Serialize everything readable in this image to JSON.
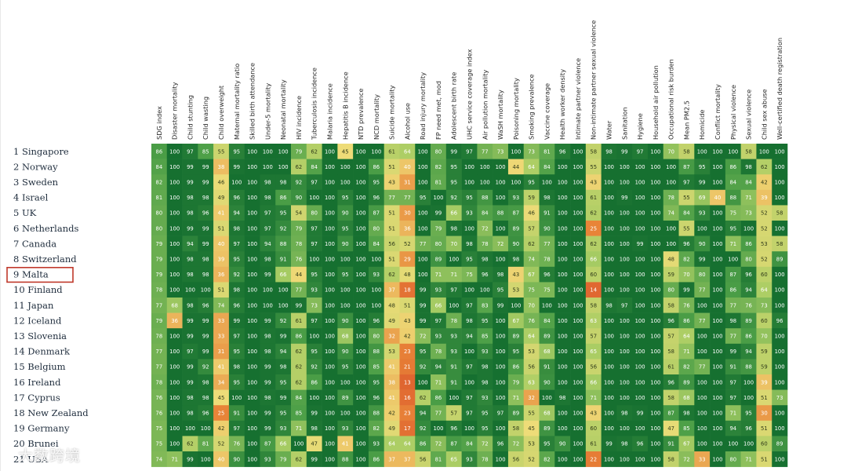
{
  "chart_data": {
    "type": "heatmap",
    "title": "",
    "xlabel": "",
    "ylabel": "",
    "highlighted_row": "9 Malta",
    "row_labels": [
      "1 Singapore",
      "2 Norway",
      "3 Sweden",
      "4 Israel",
      "5 UK",
      "6 Netherlands",
      "7 Canada",
      "8 Switzerland",
      "9 Malta",
      "10 Finland",
      "11 Japan",
      "12 Iceland",
      "13 Slovenia",
      "14 Denmark",
      "15 Belgium",
      "16 Ireland",
      "17 Cyprus",
      "18 New Zealand",
      "19 Germany",
      "20 Brunei",
      "21 USA"
    ],
    "column_labels": [
      "SDG index",
      "Disaster mortality",
      "Child stunting",
      "Child wasting",
      "Child overweight",
      "Maternal mortality ratio",
      "Skilled birth attendance",
      "Under-5 mortality",
      "Neonatal mortality",
      "HIV incidence",
      "Tuberculosis incidence",
      "Malaria incidence",
      "Hepatitis B incidence",
      "NTD prevalence",
      "NCD mortality",
      "Suicide mortality",
      "Alcohol use",
      "Road injury mortality",
      "FP need met, mod",
      "Adolescent birth rate",
      "UHC service coverage index",
      "Air pollution mortality",
      "WaSH mortality",
      "Poisoning mortality",
      "Smoking prevalence",
      "Vaccine coverage",
      "Health worker density",
      "Intimate partner violence",
      "Non-intimate partner sexual violence",
      "Water",
      "Sanitation",
      "Hygiene",
      "Household air pollution",
      "Occupational risk burden",
      "Mean PM2.5",
      "Homicide",
      "Conflict mortality",
      "Physical violence",
      "Sexual violence",
      "Child sex abuse",
      "Well-certified death registration"
    ],
    "values": [
      [
        86,
        100,
        97,
        85,
        55,
        95,
        100,
        100,
        100,
        79,
        62,
        100,
        45,
        100,
        100,
        61,
        64,
        100,
        80,
        99,
        97,
        77,
        73,
        100,
        73,
        81,
        96,
        100,
        58,
        98,
        99,
        97,
        100,
        70,
        58,
        100,
        100,
        100,
        58,
        100,
        100
      ],
      [
        84,
        100,
        99,
        99,
        38,
        99,
        100,
        100,
        100,
        62,
        84,
        100,
        100,
        100,
        86,
        51,
        40,
        100,
        82,
        95,
        100,
        100,
        100,
        44,
        64,
        84,
        100,
        100,
        55,
        100,
        100,
        100,
        100,
        100,
        87,
        95,
        100,
        86,
        98,
        62,
        100
      ],
      [
        82,
        100,
        99,
        99,
        46,
        100,
        100,
        98,
        98,
        92,
        97,
        100,
        100,
        100,
        95,
        43,
        31,
        100,
        81,
        95,
        100,
        100,
        100,
        100,
        95,
        100,
        100,
        100,
        43,
        100,
        100,
        100,
        100,
        100,
        97,
        99,
        100,
        84,
        84,
        42,
        100
      ],
      [
        81,
        100,
        98,
        98,
        49,
        96,
        100,
        98,
        86,
        90,
        100,
        100,
        95,
        100,
        96,
        77,
        77,
        95,
        100,
        92,
        95,
        88,
        100,
        93,
        59,
        98,
        100,
        100,
        61,
        100,
        99,
        100,
        100,
        78,
        55,
        69,
        40,
        88,
        71,
        39,
        100
      ],
      [
        80,
        100,
        98,
        96,
        41,
        94,
        100,
        97,
        95,
        54,
        80,
        100,
        90,
        100,
        87,
        51,
        30,
        100,
        99,
        66,
        93,
        84,
        88,
        87,
        46,
        91,
        100,
        100,
        62,
        100,
        100,
        100,
        100,
        74,
        84,
        93,
        100,
        75,
        73,
        52,
        58
      ],
      [
        80,
        100,
        99,
        99,
        51,
        98,
        100,
        97,
        92,
        79,
        97,
        100,
        95,
        100,
        80,
        51,
        36,
        100,
        79,
        98,
        100,
        72,
        100,
        89,
        57,
        90,
        100,
        100,
        25,
        100,
        100,
        100,
        100,
        100,
        55,
        100,
        100,
        95,
        100,
        52,
        100
      ],
      [
        79,
        100,
        94,
        99,
        40,
        97,
        100,
        94,
        88,
        78,
        97,
        100,
        90,
        100,
        84,
        56,
        52,
        77,
        80,
        70,
        98,
        78,
        72,
        90,
        62,
        77,
        100,
        100,
        62,
        100,
        100,
        99,
        100,
        100,
        96,
        90,
        100,
        71,
        86,
        53,
        58
      ],
      [
        79,
        100,
        98,
        98,
        39,
        95,
        100,
        98,
        91,
        76,
        100,
        100,
        100,
        100,
        100,
        51,
        29,
        100,
        89,
        100,
        95,
        98,
        100,
        98,
        74,
        78,
        100,
        100,
        66,
        100,
        100,
        100,
        100,
        48,
        82,
        99,
        100,
        100,
        80,
        52,
        89
      ],
      [
        79,
        100,
        98,
        98,
        36,
        92,
        100,
        99,
        66,
        44,
        95,
        100,
        95,
        100,
        93,
        62,
        48,
        100,
        71,
        71,
        75,
        96,
        98,
        43,
        67,
        96,
        100,
        100,
        60,
        100,
        100,
        100,
        100,
        59,
        70,
        80,
        100,
        87,
        96,
        60,
        100
      ],
      [
        78,
        100,
        100,
        100,
        51,
        98,
        100,
        100,
        100,
        77,
        93,
        100,
        100,
        100,
        100,
        37,
        18,
        99,
        93,
        97,
        100,
        100,
        95,
        53,
        75,
        75,
        100,
        100,
        14,
        100,
        100,
        100,
        100,
        80,
        99,
        77,
        100,
        86,
        94,
        64,
        100
      ],
      [
        77,
        68,
        98,
        96,
        74,
        96,
        100,
        100,
        100,
        99,
        73,
        100,
        100,
        100,
        100,
        48,
        51,
        99,
        66,
        100,
        97,
        83,
        99,
        100,
        70,
        100,
        100,
        100,
        58,
        98,
        97,
        100,
        100,
        58,
        76,
        100,
        100,
        77,
        76,
        73,
        100
      ],
      [
        79,
        36,
        99,
        99,
        33,
        99,
        100,
        99,
        92,
        61,
        97,
        100,
        90,
        100,
        96,
        49,
        43,
        99,
        97,
        78,
        98,
        95,
        100,
        67,
        76,
        84,
        100,
        100,
        63,
        100,
        100,
        100,
        100,
        96,
        86,
        77,
        100,
        98,
        89,
        60,
        96
      ],
      [
        78,
        100,
        99,
        99,
        33,
        97,
        100,
        98,
        99,
        86,
        100,
        100,
        68,
        100,
        80,
        32,
        42,
        72,
        93,
        93,
        94,
        85,
        100,
        89,
        64,
        89,
        100,
        100,
        57,
        100,
        100,
        100,
        100,
        57,
        64,
        100,
        100,
        77,
        86,
        70,
        100
      ],
      [
        77,
        100,
        97,
        99,
        31,
        95,
        100,
        98,
        94,
        62,
        95,
        100,
        90,
        100,
        88,
        53,
        23,
        95,
        78,
        93,
        100,
        93,
        100,
        95,
        53,
        68,
        100,
        100,
        65,
        100,
        100,
        100,
        100,
        58,
        71,
        100,
        100,
        99,
        94,
        59,
        100
      ],
      [
        77,
        100,
        99,
        92,
        41,
        98,
        100,
        99,
        98,
        62,
        92,
        100,
        95,
        100,
        85,
        41,
        21,
        92,
        94,
        91,
        97,
        98,
        100,
        86,
        56,
        91,
        100,
        100,
        56,
        100,
        100,
        100,
        100,
        61,
        82,
        77,
        100,
        91,
        88,
        59,
        100
      ],
      [
        78,
        100,
        99,
        98,
        34,
        95,
        100,
        99,
        95,
        62,
        86,
        100,
        100,
        100,
        95,
        38,
        13,
        100,
        71,
        91,
        100,
        98,
        100,
        79,
        63,
        90,
        100,
        100,
        66,
        100,
        100,
        100,
        100,
        96,
        89,
        100,
        100,
        97,
        100,
        39,
        100
      ],
      [
        76,
        100,
        98,
        98,
        45,
        100,
        100,
        98,
        99,
        84,
        100,
        100,
        89,
        100,
        96,
        41,
        16,
        62,
        86,
        100,
        97,
        93,
        100,
        71,
        32,
        100,
        98,
        100,
        71,
        100,
        100,
        100,
        100,
        58,
        68,
        100,
        100,
        97,
        100,
        51,
        73
      ],
      [
        76,
        100,
        98,
        96,
        25,
        91,
        100,
        99,
        95,
        85,
        99,
        100,
        100,
        100,
        88,
        42,
        23,
        94,
        77,
        57,
        97,
        95,
        97,
        89,
        55,
        68,
        100,
        100,
        43,
        100,
        98,
        99,
        100,
        87,
        98,
        100,
        100,
        71,
        95,
        30,
        100
      ],
      [
        75,
        100,
        100,
        100,
        42,
        97,
        100,
        99,
        93,
        71,
        98,
        100,
        93,
        100,
        82,
        49,
        17,
        92,
        100,
        96,
        100,
        95,
        100,
        58,
        45,
        89,
        100,
        100,
        60,
        100,
        100,
        100,
        100,
        47,
        85,
        100,
        100,
        94,
        96,
        51,
        100
      ],
      [
        75,
        100,
        62,
        81,
        52,
        76,
        100,
        87,
        66,
        100,
        47,
        100,
        41,
        100,
        93,
        64,
        64,
        86,
        72,
        87,
        84,
        72,
        96,
        72,
        53,
        95,
        90,
        100,
        61,
        99,
        98,
        96,
        100,
        91,
        67,
        100,
        100,
        100,
        100,
        60,
        89
      ],
      [
        74,
        71,
        99,
        100,
        40,
        90,
        100,
        93,
        79,
        62,
        99,
        100,
        88,
        100,
        86,
        37,
        37,
        56,
        81,
        65,
        93,
        78,
        100,
        56,
        52,
        82,
        100,
        100,
        22,
        100,
        100,
        100,
        100,
        58,
        72,
        33,
        100,
        80,
        71,
        51,
        100
      ]
    ]
  },
  "watermark": "大数跨境"
}
